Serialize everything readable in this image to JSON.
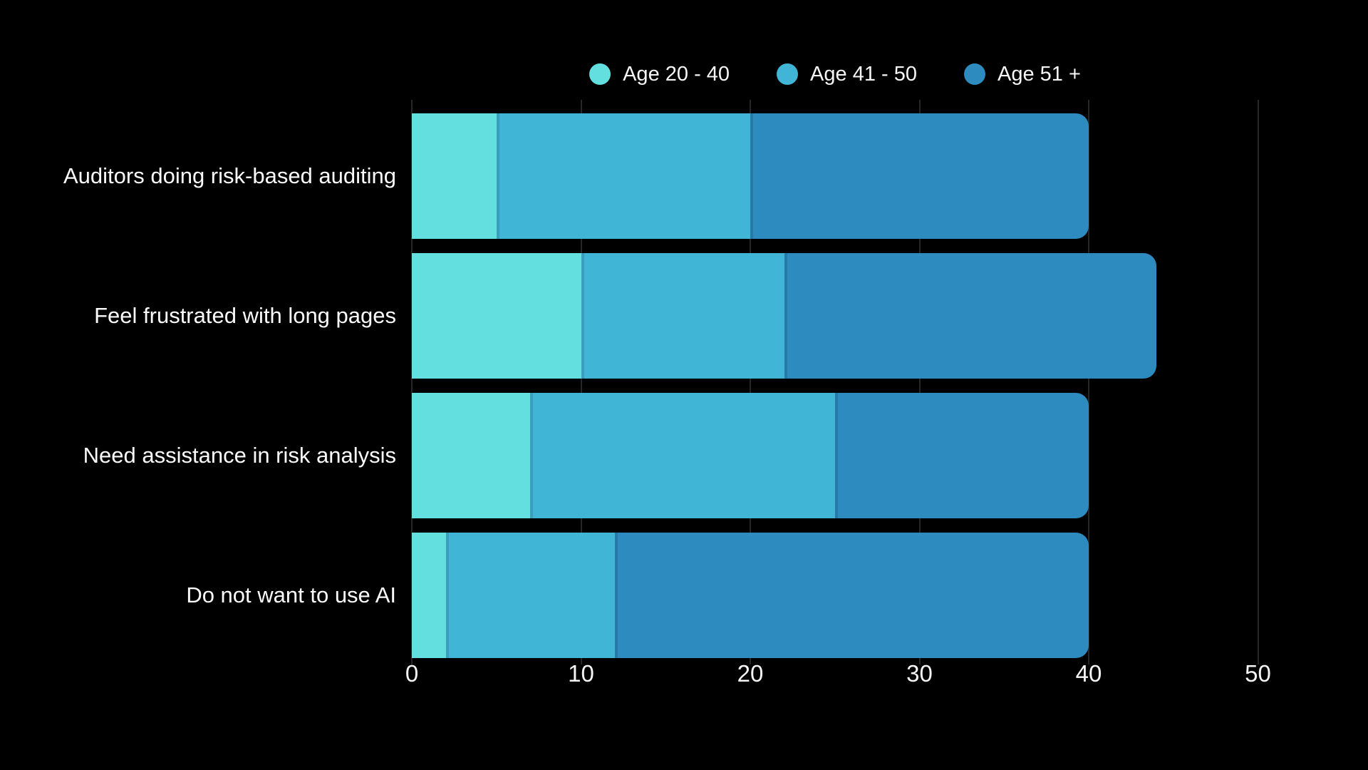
{
  "page": {
    "background": "#000000",
    "text_color": "#f5f5f5"
  },
  "legend": {
    "position": "top",
    "items": [
      {
        "label": "Age 20 - 40",
        "color": "#63dfe0"
      },
      {
        "label": "Age 41 - 50",
        "color": "#41b5d6"
      },
      {
        "label": "Age 51 +",
        "color": "#2d8bc0"
      }
    ]
  },
  "chart_data": {
    "type": "bar",
    "orientation": "horizontal",
    "stacked": true,
    "title": "",
    "xlabel": "",
    "ylabel": "",
    "categories": [
      "Auditors doing risk-based auditing",
      "Feel frustrated with long pages",
      "Need assistance in risk analysis",
      "Do not want to use AI"
    ],
    "series": [
      {
        "name": "Age 20 - 40",
        "color": "#63dfe0",
        "values": [
          5,
          10,
          7,
          2
        ]
      },
      {
        "name": "Age 41 - 50",
        "color": "#41b5d6",
        "values": [
          15,
          12,
          18,
          10
        ]
      },
      {
        "name": "Age 51 +",
        "color": "#2d8bc0",
        "values": [
          20,
          22,
          15,
          28
        ]
      }
    ],
    "totals": [
      40,
      44,
      40,
      40
    ],
    "x_ticks": [
      "0",
      "10",
      "20",
      "30",
      "40",
      "50"
    ],
    "x_tick_values": [
      0,
      10,
      20,
      30,
      40,
      50
    ],
    "xlim": [
      0,
      50
    ],
    "grid": "vertical-faint",
    "legend_position": "top",
    "background": "#000000"
  }
}
